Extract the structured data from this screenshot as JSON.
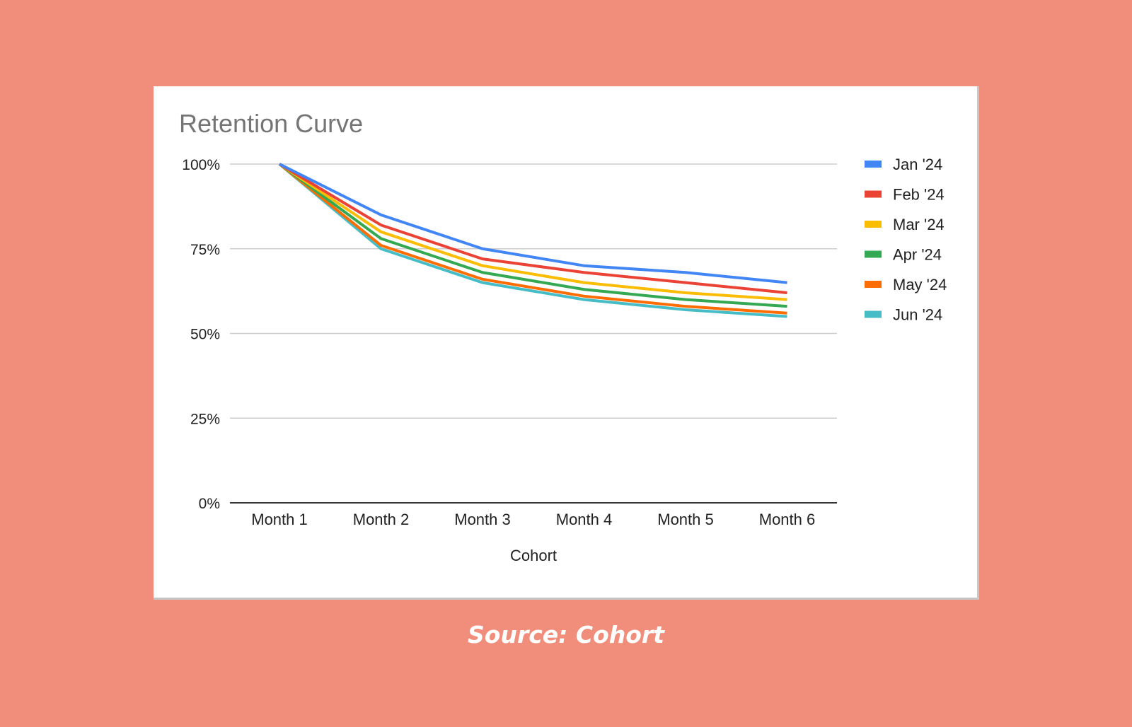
{
  "page": {
    "background_color": "#F08E7B",
    "caption": "Source: Cohort"
  },
  "chart_data": {
    "type": "line",
    "title": "Retention Curve",
    "xlabel": "Cohort",
    "ylabel": "",
    "ylim": [
      0,
      100
    ],
    "ytick_values": [
      0,
      25,
      50,
      75,
      100
    ],
    "ytick_labels": [
      "0%",
      "25%",
      "50%",
      "75%",
      "100%"
    ],
    "categories": [
      "Month 1",
      "Month 2",
      "Month 3",
      "Month 4",
      "Month 5",
      "Month 6"
    ],
    "grid": true,
    "legend_position": "right",
    "series": [
      {
        "name": "Jan '24",
        "color": "#4285F4",
        "values": [
          100,
          85,
          75,
          70,
          68,
          65
        ]
      },
      {
        "name": "Feb '24",
        "color": "#EA4335",
        "values": [
          100,
          82,
          72,
          68,
          65,
          62
        ]
      },
      {
        "name": "Mar '24",
        "color": "#FBBC04",
        "values": [
          100,
          80,
          70,
          65,
          62,
          60
        ]
      },
      {
        "name": "Apr '24",
        "color": "#34A853",
        "values": [
          100,
          78,
          68,
          63,
          60,
          58
        ]
      },
      {
        "name": "May '24",
        "color": "#FF6D01",
        "values": [
          100,
          76,
          66,
          61,
          58,
          56
        ]
      },
      {
        "name": "Jun '24",
        "color": "#46BDC6",
        "values": [
          100,
          75,
          65,
          60,
          57,
          55
        ]
      }
    ]
  }
}
